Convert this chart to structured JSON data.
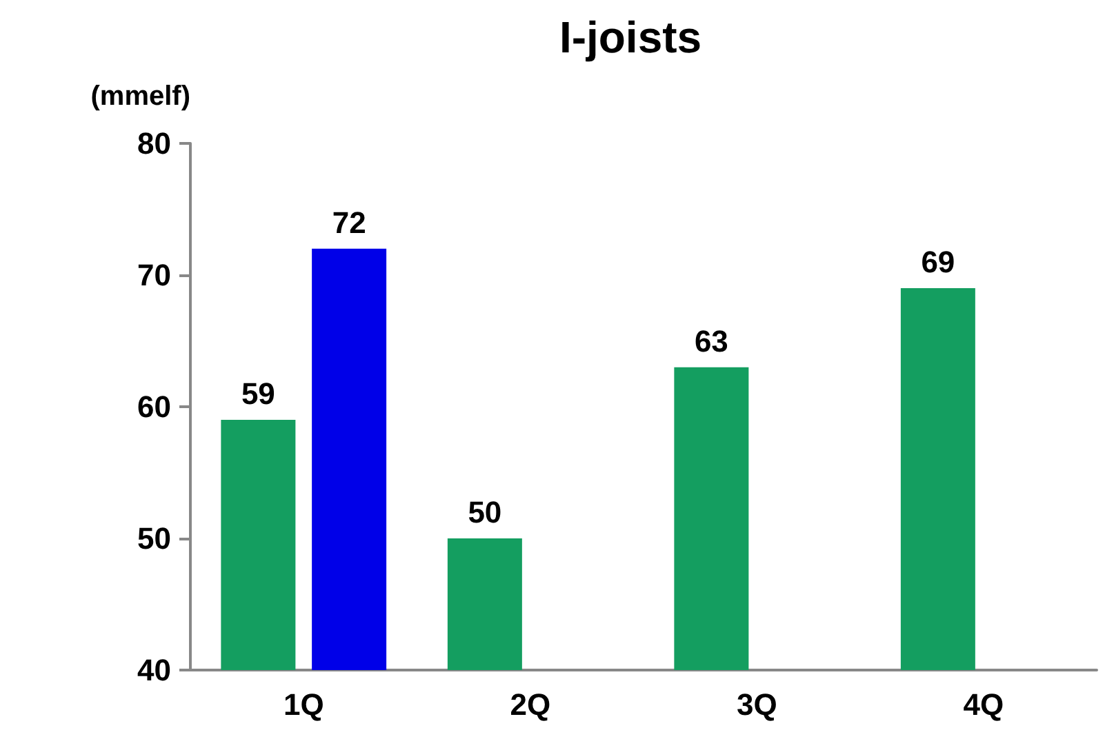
{
  "chart_data": {
    "type": "bar",
    "title": "I-joists",
    "ylabel": "(mmelf)",
    "categories": [
      "1Q",
      "2Q",
      "3Q",
      "4Q"
    ],
    "series": [
      {
        "color": "#149e60",
        "values": [
          59,
          50,
          63,
          69
        ]
      },
      {
        "color": "#0000e8",
        "values": [
          72,
          null,
          null,
          null
        ]
      }
    ],
    "ylim": [
      40,
      80
    ],
    "yticks": [
      40,
      50,
      60,
      70,
      80
    ],
    "grid": false,
    "data_labels": true
  }
}
